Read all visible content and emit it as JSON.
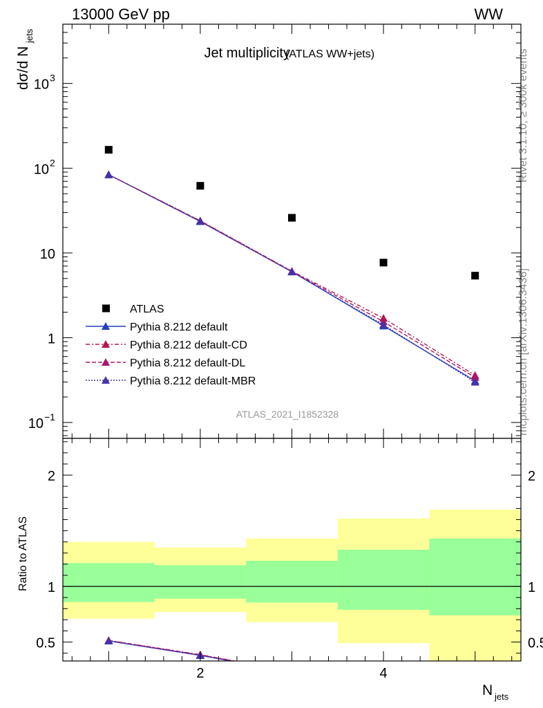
{
  "header": {
    "left": "13000 GeV pp",
    "right": "WW"
  },
  "side_text": {
    "rivet": "Rivet 3.1.10, ≥ 300k events",
    "mcplots": "mcplots.cern.ch [arXiv:1306.3436]"
  },
  "chart_data": [
    {
      "type": "line",
      "title": "Jet multiplicity",
      "subtitle": "(ATLAS WW+jets)",
      "ylabel": "dσ/d N",
      "ylabel_sub": "jets",
      "y_scale": "log",
      "ylim": [
        0.065,
        5000
      ],
      "xlim": [
        0.5,
        5.5
      ],
      "y_ticks": [
        {
          "value": 0.1,
          "base": "10",
          "exp": "−1"
        },
        {
          "value": 1,
          "label": "1"
        },
        {
          "value": 10,
          "label": "10"
        },
        {
          "value": 100,
          "base": "10",
          "exp": "2"
        },
        {
          "value": 1000,
          "base": "10",
          "exp": "3"
        }
      ],
      "watermark": "ATLAS_2021_I1852328",
      "legend_position": "bottom-left",
      "x": [
        1,
        2,
        3,
        4,
        5
      ],
      "series": [
        {
          "name": "ATLAS",
          "marker": "square",
          "color": "#000000",
          "values": [
            165,
            62,
            26,
            7.7,
            5.4
          ]
        },
        {
          "name": "Pythia 8.212 default",
          "marker": "triangle",
          "line": "solid",
          "color": "#1f3fbf",
          "values": [
            84,
            23.5,
            6.0,
            1.38,
            0.31
          ]
        },
        {
          "name": "Pythia 8.212 default-CD",
          "marker": "triangle",
          "line": "dash-dot",
          "color": "#b5174f",
          "values": [
            84,
            24,
            6.1,
            1.7,
            0.36
          ]
        },
        {
          "name": "Pythia 8.212 default-DL",
          "marker": "triangle",
          "line": "dashed",
          "color": "#a8176e",
          "values": [
            84,
            23.8,
            6.05,
            1.55,
            0.34
          ]
        },
        {
          "name": "Pythia 8.212 default-MBR",
          "marker": "triangle",
          "line": "dotted",
          "color": "#4433aa",
          "values": [
            84,
            23.6,
            6.0,
            1.42,
            0.3
          ]
        }
      ]
    },
    {
      "type": "area",
      "ylabel": "Ratio to ATLAS",
      "xlabel": "N",
      "xlabel_sub": "jets",
      "ylim": [
        0.33,
        2.33
      ],
      "xlim": [
        0.5,
        5.5
      ],
      "y_ticks": [
        0.5,
        1,
        2
      ],
      "x_ticks": [
        2,
        4
      ],
      "bins": [
        {
          "lo": 0.5,
          "hi": 1.5,
          "green": [
            0.86,
            1.21
          ],
          "yellow": [
            0.71,
            1.4
          ]
        },
        {
          "lo": 1.5,
          "hi": 2.5,
          "green": [
            0.89,
            1.19
          ],
          "yellow": [
            0.77,
            1.35
          ]
        },
        {
          "lo": 2.5,
          "hi": 3.5,
          "green": [
            0.855,
            1.23
          ],
          "yellow": [
            0.68,
            1.43
          ]
        },
        {
          "lo": 3.5,
          "hi": 4.5,
          "green": [
            0.79,
            1.33
          ],
          "yellow": [
            0.49,
            1.61
          ]
        },
        {
          "lo": 4.5,
          "hi": 5.5,
          "green": [
            0.74,
            1.43
          ],
          "yellow": [
            0.33,
            1.69
          ]
        }
      ],
      "ratio_lines": [
        {
          "name": "Pythia 8.212 default",
          "color": "#1f3fbf",
          "dash": "",
          "points": [
            [
              1,
              0.51
            ],
            [
              2,
              0.38
            ],
            [
              3,
              0.23
            ]
          ]
        },
        {
          "name": "Pythia 8.212 default-CD",
          "color": "#b5174f",
          "dash": "6,3,2,3",
          "points": [
            [
              1,
              0.515
            ],
            [
              2,
              0.387
            ],
            [
              3,
              0.235
            ]
          ]
        },
        {
          "name": "Pythia 8.212 default-DL",
          "color": "#a8176e",
          "dash": "6,3",
          "points": [
            [
              1,
              0.513
            ],
            [
              2,
              0.384
            ],
            [
              3,
              0.233
            ]
          ]
        },
        {
          "name": "Pythia 8.212 default-MBR",
          "color": "#4433aa",
          "dash": "2,2",
          "points": [
            [
              1,
              0.511
            ],
            [
              2,
              0.381
            ],
            [
              3,
              0.231
            ]
          ]
        }
      ]
    }
  ]
}
